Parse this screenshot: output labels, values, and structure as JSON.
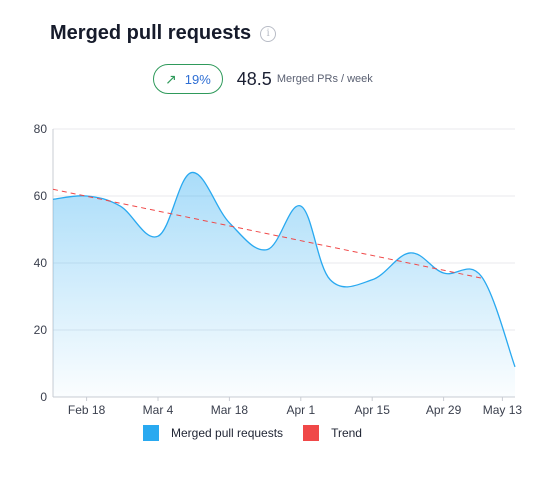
{
  "header": {
    "title": "Merged pull requests",
    "info_icon": "info-icon"
  },
  "kpi": {
    "change_icon": "arrow-up-right-icon",
    "change": "19%",
    "value": "48.5",
    "unit": "Merged PRs / week"
  },
  "colors": {
    "area": "#29a9f0",
    "trend": "#f04848",
    "badge_border": "#2f9a5b",
    "badge_text": "#2f6fd4"
  },
  "chart_data": {
    "type": "area",
    "ylim": [
      0,
      80
    ],
    "yticks": [
      0,
      20,
      40,
      60,
      80
    ],
    "xlim": [
      0,
      110
    ],
    "x_ticks": [
      {
        "label": "Feb 18",
        "x": 8
      },
      {
        "label": "Mar 4",
        "x": 25
      },
      {
        "label": "Mar 18",
        "x": 42
      },
      {
        "label": "Apr 1",
        "x": 59
      },
      {
        "label": "Apr 15",
        "x": 76
      },
      {
        "label": "Apr 29",
        "x": 93
      },
      {
        "label": "May 13",
        "x": 107
      }
    ],
    "series": [
      {
        "name": "Merged pull requests",
        "type": "area",
        "points": [
          [
            0,
            59
          ],
          [
            8,
            60
          ],
          [
            16,
            57
          ],
          [
            25,
            48
          ],
          [
            33,
            67
          ],
          [
            42,
            52
          ],
          [
            51,
            44
          ],
          [
            59,
            57
          ],
          [
            66,
            35
          ],
          [
            76,
            35
          ],
          [
            85,
            43
          ],
          [
            93,
            37
          ],
          [
            102,
            36
          ],
          [
            110,
            9
          ]
        ]
      },
      {
        "name": "Trend",
        "type": "line",
        "style": "dashed",
        "points": [
          [
            0,
            62
          ],
          [
            102,
            35.5
          ]
        ]
      }
    ],
    "legend": [
      "Merged pull requests",
      "Trend"
    ],
    "legend_position": "bottom",
    "grid": true
  }
}
